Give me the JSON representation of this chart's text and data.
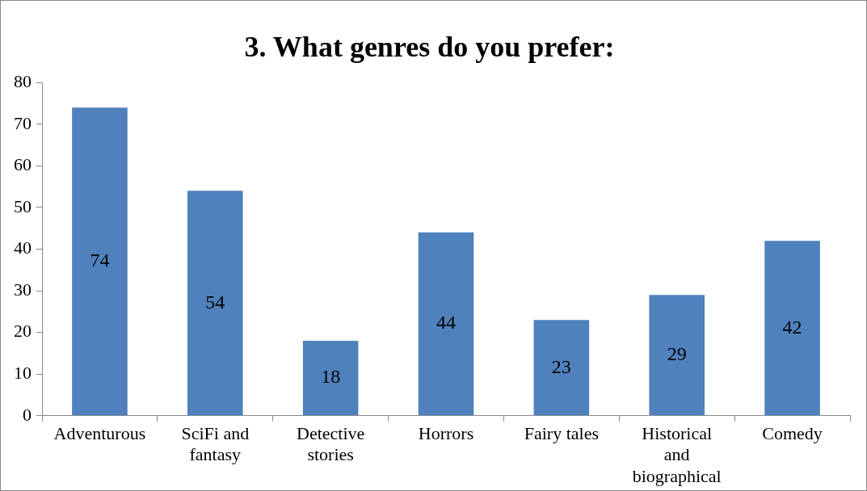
{
  "chart_data": {
    "type": "bar",
    "title": "3. What genres do you prefer:",
    "categories": [
      "Adventurous",
      "SciFi and fantasy",
      "Detective stories",
      "Horrors",
      "Fairy tales",
      "Historical and biographical",
      "Comedy"
    ],
    "values": [
      74,
      54,
      18,
      44,
      23,
      29,
      42
    ],
    "color": "#4f81bd",
    "ylim": [
      0,
      80
    ],
    "yticks": [
      0,
      10,
      20,
      30,
      40,
      50,
      60,
      70,
      80
    ],
    "grid": false,
    "legend": false,
    "data_labels": true
  }
}
